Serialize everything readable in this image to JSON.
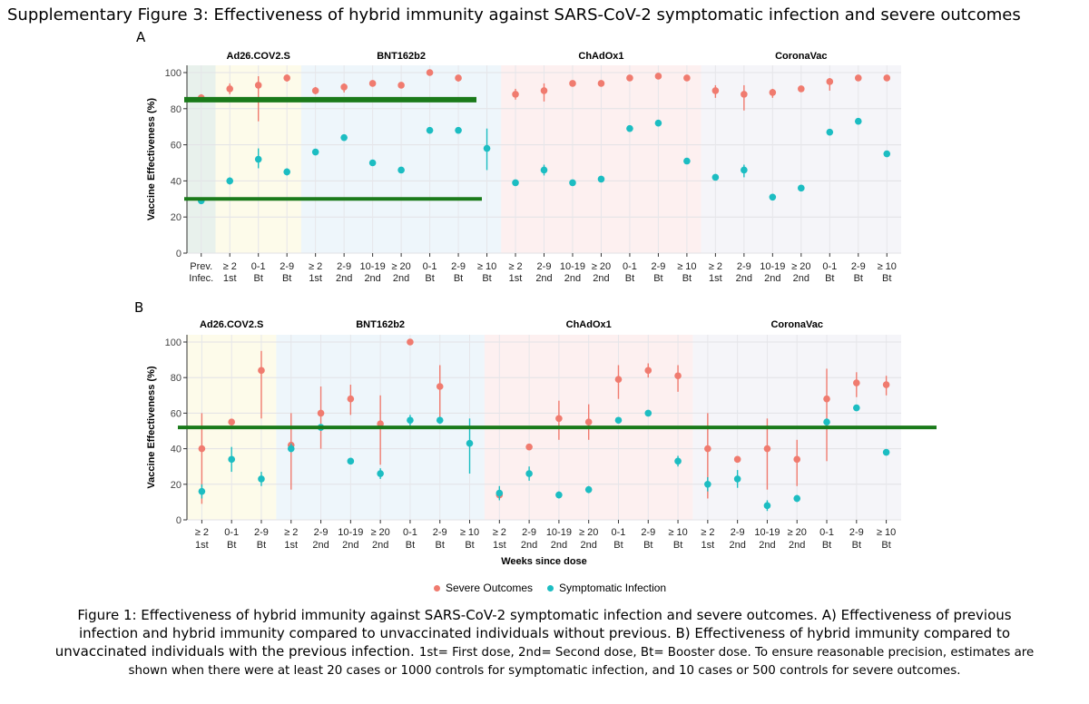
{
  "figure_title": "Supplementary Figure 3: Effectiveness of hybrid immunity against SARS-CoV-2 symptomatic infection and severe outcomes",
  "panel_a_letter": "A",
  "panel_b_letter": "B",
  "legend": {
    "severe_label": "Severe Outcomes",
    "symptomatic_label": "Symptomatic Infection",
    "severe_color": "#f07b6f",
    "symptomatic_color": "#1cbdc2"
  },
  "caption": {
    "line1": "Figure 1: Effectiveness of hybrid immunity against SARS-CoV-2 symptomatic infection and severe outcomes. A) Effectiveness of previous",
    "line2": "infection and hybrid immunity compared to unvaccinated individuals without previous. B) Effectiveness of hybrid immunity compared to",
    "line3": "unvaccinated individuals with the previous infection.",
    "line3_small": "1st= First dose, 2nd= Second dose, Bt= Booster dose. To ensure reasonable precision, estimates are",
    "line4": "shown when there were at least 20 cases or 1000 controls for symptomatic infection, and 10 cases or 500 controls for severe outcomes."
  },
  "chart_data": [
    {
      "type": "scatter",
      "panel": "A",
      "ylabel": "Vaccine Effectiveness (%)",
      "xlabel": "",
      "ylim": [
        0,
        100
      ],
      "yticks": [
        0,
        20,
        40,
        60,
        80,
        100
      ],
      "groups": [
        {
          "name": "",
          "color": "#e8f1ec",
          "start": 0,
          "end": 0
        },
        {
          "name": "Ad26.COV2.S",
          "color": "#fdfbea",
          "start": 1,
          "end": 3
        },
        {
          "name": "BNT162b2",
          "color": "#eef6fb",
          "start": 4,
          "end": 10
        },
        {
          "name": "ChAdOx1",
          "color": "#fdf0f0",
          "start": 11,
          "end": 17
        },
        {
          "name": "CoronaVac",
          "color": "#f5f5f9",
          "start": 18,
          "end": 24
        }
      ],
      "categories": [
        [
          "Prev.",
          "Infec."
        ],
        [
          "≥ 2",
          "1st"
        ],
        [
          "0-1",
          "Bt"
        ],
        [
          "2-9",
          "Bt"
        ],
        [
          "≥ 2",
          "1st"
        ],
        [
          "2-9",
          "2nd"
        ],
        [
          "10-19",
          "2nd"
        ],
        [
          "≥ 20",
          "2nd"
        ],
        [
          "0-1",
          "Bt"
        ],
        [
          "2-9",
          "Bt"
        ],
        [
          "≥ 10",
          "Bt"
        ],
        [
          "≥ 2",
          "1st"
        ],
        [
          "2-9",
          "2nd"
        ],
        [
          "10-19",
          "2nd"
        ],
        [
          "≥ 20",
          "2nd"
        ],
        [
          "0-1",
          "Bt"
        ],
        [
          "2-9",
          "Bt"
        ],
        [
          "≥ 10",
          "Bt"
        ],
        [
          "≥ 2",
          "1st"
        ],
        [
          "2-9",
          "2nd"
        ],
        [
          "10-19",
          "2nd"
        ],
        [
          "≥ 20",
          "2nd"
        ],
        [
          "0-1",
          "Bt"
        ],
        [
          "2-9",
          "Bt"
        ],
        [
          "≥ 10",
          "Bt"
        ]
      ],
      "reference_lines": [
        85,
        30
      ],
      "series": [
        {
          "name": "Severe Outcomes",
          "points": [
            {
              "x": 0,
              "y": 86,
              "lo": 84,
              "hi": 88
            },
            {
              "x": 1,
              "y": 91,
              "lo": 88,
              "hi": 94
            },
            {
              "x": 2,
              "y": 93,
              "lo": 73,
              "hi": 98
            },
            {
              "x": 3,
              "y": 97,
              "lo": 95,
              "hi": 99
            },
            {
              "x": 4,
              "y": 90,
              "lo": 88,
              "hi": 92
            },
            {
              "x": 5,
              "y": 92,
              "lo": 89,
              "hi": 94
            },
            {
              "x": 6,
              "y": 94,
              "lo": 93,
              "hi": 95
            },
            {
              "x": 7,
              "y": 93,
              "lo": 92,
              "hi": 94
            },
            {
              "x": 8,
              "y": 100,
              "lo": 99,
              "hi": 100
            },
            {
              "x": 9,
              "y": 97,
              "lo": 95,
              "hi": 98
            },
            {
              "x": 11,
              "y": 88,
              "lo": 85,
              "hi": 91
            },
            {
              "x": 12,
              "y": 90,
              "lo": 84,
              "hi": 94
            },
            {
              "x": 13,
              "y": 94,
              "lo": 93,
              "hi": 95
            },
            {
              "x": 14,
              "y": 94,
              "lo": 93,
              "hi": 95
            },
            {
              "x": 15,
              "y": 97,
              "lo": 96,
              "hi": 98
            },
            {
              "x": 16,
              "y": 98,
              "lo": 97,
              "hi": 99
            },
            {
              "x": 17,
              "y": 97,
              "lo": 96,
              "hi": 98
            },
            {
              "x": 18,
              "y": 90,
              "lo": 86,
              "hi": 93
            },
            {
              "x": 19,
              "y": 88,
              "lo": 79,
              "hi": 93
            },
            {
              "x": 20,
              "y": 89,
              "lo": 86,
              "hi": 91
            },
            {
              "x": 21,
              "y": 91,
              "lo": 90,
              "hi": 92
            },
            {
              "x": 22,
              "y": 95,
              "lo": 90,
              "hi": 97
            },
            {
              "x": 23,
              "y": 97,
              "lo": 96,
              "hi": 98
            },
            {
              "x": 24,
              "y": 97,
              "lo": 96,
              "hi": 98
            }
          ]
        },
        {
          "name": "Symptomatic Infection",
          "points": [
            {
              "x": 0,
              "y": 29,
              "lo": 28,
              "hi": 30
            },
            {
              "x": 1,
              "y": 40,
              "lo": 38,
              "hi": 42
            },
            {
              "x": 2,
              "y": 52,
              "lo": 47,
              "hi": 58
            },
            {
              "x": 3,
              "y": 45,
              "lo": 43,
              "hi": 47
            },
            {
              "x": 4,
              "y": 56,
              "lo": 55,
              "hi": 57
            },
            {
              "x": 5,
              "y": 64,
              "lo": 63,
              "hi": 65
            },
            {
              "x": 6,
              "y": 50,
              "lo": 49,
              "hi": 51
            },
            {
              "x": 7,
              "y": 46,
              "lo": 45,
              "hi": 47
            },
            {
              "x": 8,
              "y": 68,
              "lo": 67,
              "hi": 69
            },
            {
              "x": 9,
              "y": 68,
              "lo": 67,
              "hi": 69
            },
            {
              "x": 10,
              "y": 58,
              "lo": 46,
              "hi": 69
            },
            {
              "x": 11,
              "y": 39,
              "lo": 38,
              "hi": 40
            },
            {
              "x": 12,
              "y": 46,
              "lo": 43,
              "hi": 49
            },
            {
              "x": 13,
              "y": 39,
              "lo": 38,
              "hi": 40
            },
            {
              "x": 14,
              "y": 41,
              "lo": 40,
              "hi": 42
            },
            {
              "x": 15,
              "y": 69,
              "lo": 68,
              "hi": 70
            },
            {
              "x": 16,
              "y": 72,
              "lo": 71,
              "hi": 73
            },
            {
              "x": 17,
              "y": 51,
              "lo": 50,
              "hi": 52
            },
            {
              "x": 18,
              "y": 42,
              "lo": 41,
              "hi": 43
            },
            {
              "x": 19,
              "y": 46,
              "lo": 42,
              "hi": 49
            },
            {
              "x": 20,
              "y": 31,
              "lo": 30,
              "hi": 32
            },
            {
              "x": 21,
              "y": 36,
              "lo": 35,
              "hi": 37
            },
            {
              "x": 22,
              "y": 67,
              "lo": 66,
              "hi": 68
            },
            {
              "x": 23,
              "y": 73,
              "lo": 72,
              "hi": 74
            },
            {
              "x": 24,
              "y": 55,
              "lo": 54,
              "hi": 56
            }
          ]
        }
      ]
    },
    {
      "type": "scatter",
      "panel": "B",
      "ylabel": "Vaccine Effectiveness (%)",
      "xlabel": "Weeks since dose",
      "ylim": [
        0,
        100
      ],
      "yticks": [
        0,
        20,
        40,
        60,
        80,
        100
      ],
      "groups": [
        {
          "name": "Ad26.COV2.S",
          "color": "#fdfbea",
          "start": 0,
          "end": 2
        },
        {
          "name": "BNT162b2",
          "color": "#eef6fb",
          "start": 3,
          "end": 9
        },
        {
          "name": "ChAdOx1",
          "color": "#fdf0f0",
          "start": 10,
          "end": 16
        },
        {
          "name": "CoronaVac",
          "color": "#f5f5f9",
          "start": 17,
          "end": 23
        }
      ],
      "categories": [
        [
          "≥ 2",
          "1st"
        ],
        [
          "0-1",
          "Bt"
        ],
        [
          "2-9",
          "Bt"
        ],
        [
          "≥ 2",
          "1st"
        ],
        [
          "2-9",
          "2nd"
        ],
        [
          "10-19",
          "2nd"
        ],
        [
          "≥ 20",
          "2nd"
        ],
        [
          "0-1",
          "Bt"
        ],
        [
          "2-9",
          "Bt"
        ],
        [
          "≥ 10",
          "Bt"
        ],
        [
          "≥ 2",
          "1st"
        ],
        [
          "2-9",
          "2nd"
        ],
        [
          "10-19",
          "2nd"
        ],
        [
          "≥ 20",
          "2nd"
        ],
        [
          "0-1",
          "Bt"
        ],
        [
          "2-9",
          "Bt"
        ],
        [
          "≥ 10",
          "Bt"
        ],
        [
          "≥ 2",
          "1st"
        ],
        [
          "2-9",
          "2nd"
        ],
        [
          "10-19",
          "2nd"
        ],
        [
          "≥ 20",
          "2nd"
        ],
        [
          "0-1",
          "Bt"
        ],
        [
          "2-9",
          "Bt"
        ],
        [
          "≥ 10",
          "Bt"
        ]
      ],
      "reference_lines": [
        52
      ],
      "series": [
        {
          "name": "Severe Outcomes",
          "points": [
            {
              "x": 0,
              "y": 40,
              "lo": 9,
              "hi": 60
            },
            {
              "x": 1,
              "y": 55,
              "lo": 54,
              "hi": 56
            },
            {
              "x": 2,
              "y": 84,
              "lo": 57,
              "hi": 95
            },
            {
              "x": 3,
              "y": 42,
              "lo": 17,
              "hi": 60
            },
            {
              "x": 4,
              "y": 60,
              "lo": 40,
              "hi": 75
            },
            {
              "x": 5,
              "y": 68,
              "lo": 59,
              "hi": 76
            },
            {
              "x": 6,
              "y": 54,
              "lo": 31,
              "hi": 70
            },
            {
              "x": 7,
              "y": 100,
              "lo": 99,
              "hi": 100
            },
            {
              "x": 8,
              "y": 75,
              "lo": 55,
              "hi": 87
            },
            {
              "x": 10,
              "y": 14,
              "lo": 13,
              "hi": 15
            },
            {
              "x": 11,
              "y": 41,
              "lo": 40,
              "hi": 42
            },
            {
              "x": 12,
              "y": 57,
              "lo": 45,
              "hi": 67
            },
            {
              "x": 13,
              "y": 55,
              "lo": 45,
              "hi": 65
            },
            {
              "x": 14,
              "y": 79,
              "lo": 68,
              "hi": 87
            },
            {
              "x": 15,
              "y": 84,
              "lo": 80,
              "hi": 88
            },
            {
              "x": 16,
              "y": 81,
              "lo": 72,
              "hi": 87
            },
            {
              "x": 17,
              "y": 40,
              "lo": 12,
              "hi": 60
            },
            {
              "x": 18,
              "y": 34,
              "lo": 33,
              "hi": 35
            },
            {
              "x": 19,
              "y": 40,
              "lo": 17,
              "hi": 57
            },
            {
              "x": 20,
              "y": 34,
              "lo": 19,
              "hi": 45
            },
            {
              "x": 21,
              "y": 68,
              "lo": 33,
              "hi": 85
            },
            {
              "x": 22,
              "y": 77,
              "lo": 69,
              "hi": 83
            },
            {
              "x": 23,
              "y": 76,
              "lo": 70,
              "hi": 81
            }
          ]
        },
        {
          "name": "Symptomatic Infection",
          "points": [
            {
              "x": 0,
              "y": 16,
              "lo": 12,
              "hi": 20
            },
            {
              "x": 1,
              "y": 34,
              "lo": 27,
              "hi": 41
            },
            {
              "x": 2,
              "y": 23,
              "lo": 19,
              "hi": 27
            },
            {
              "x": 3,
              "y": 40,
              "lo": 38,
              "hi": 43
            },
            {
              "x": 4,
              "y": 52,
              "lo": 51,
              "hi": 53
            },
            {
              "x": 5,
              "y": 33,
              "lo": 32,
              "hi": 34
            },
            {
              "x": 6,
              "y": 26,
              "lo": 23,
              "hi": 29
            },
            {
              "x": 7,
              "y": 56,
              "lo": 53,
              "hi": 59
            },
            {
              "x": 8,
              "y": 56,
              "lo": 54,
              "hi": 58
            },
            {
              "x": 9,
              "y": 43,
              "lo": 26,
              "hi": 57
            },
            {
              "x": 10,
              "y": 15,
              "lo": 11,
              "hi": 19
            },
            {
              "x": 11,
              "y": 26,
              "lo": 22,
              "hi": 30
            },
            {
              "x": 12,
              "y": 14,
              "lo": 12,
              "hi": 16
            },
            {
              "x": 13,
              "y": 17,
              "lo": 15,
              "hi": 19
            },
            {
              "x": 14,
              "y": 56,
              "lo": 55,
              "hi": 57
            },
            {
              "x": 15,
              "y": 60,
              "lo": 59,
              "hi": 61
            },
            {
              "x": 16,
              "y": 33,
              "lo": 30,
              "hi": 36
            },
            {
              "x": 17,
              "y": 20,
              "lo": 16,
              "hi": 24
            },
            {
              "x": 18,
              "y": 23,
              "lo": 18,
              "hi": 28
            },
            {
              "x": 19,
              "y": 8,
              "lo": 5,
              "hi": 11
            },
            {
              "x": 20,
              "y": 12,
              "lo": 10,
              "hi": 14
            },
            {
              "x": 21,
              "y": 55,
              "lo": 53,
              "hi": 57
            },
            {
              "x": 22,
              "y": 63,
              "lo": 62,
              "hi": 64
            },
            {
              "x": 23,
              "y": 38,
              "lo": 37,
              "hi": 39
            }
          ]
        }
      ]
    }
  ]
}
